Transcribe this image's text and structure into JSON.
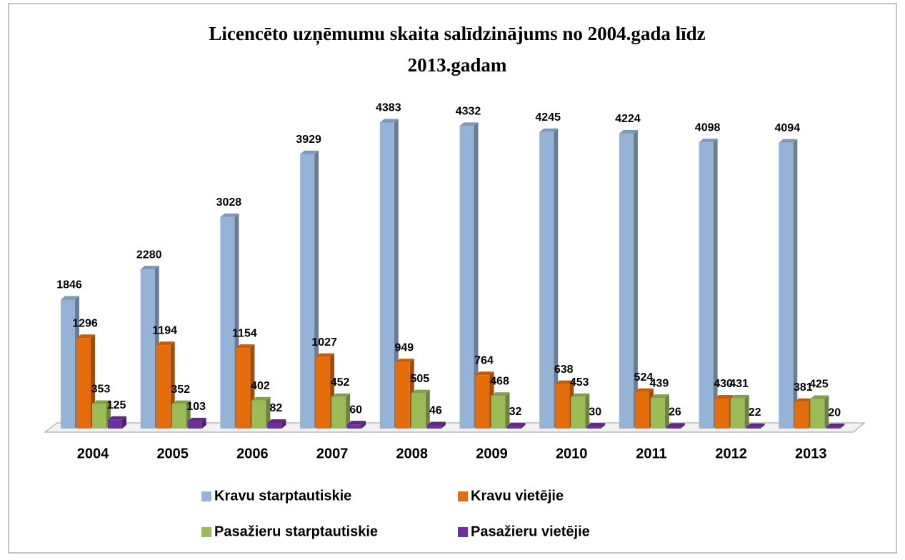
{
  "chart_data": {
    "type": "bar3d",
    "title": "Licencēto uzņēmumu skaita salīdzinājums no 2004.gada līdz 2013.gadam",
    "categories": [
      "2004",
      "2005",
      "2006",
      "2007",
      "2008",
      "2009",
      "2010",
      "2011",
      "2012",
      "2013"
    ],
    "series": [
      {
        "name": "Kravu starptautiskie",
        "color": "#95b3d7",
        "values": [
          1846,
          2280,
          3028,
          3929,
          4383,
          4332,
          4245,
          4224,
          4098,
          4094
        ]
      },
      {
        "name": "Kravu vietējie",
        "color": "#e46c0a",
        "values": [
          1296,
          1194,
          1154,
          1027,
          949,
          764,
          638,
          524,
          430,
          381
        ]
      },
      {
        "name": "Pasažieru starptautiskie",
        "color": "#9bbb59",
        "values": [
          353,
          352,
          402,
          452,
          505,
          468,
          453,
          439,
          431,
          425
        ]
      },
      {
        "name": "Pasažieru vietējie",
        "color": "#7030a0",
        "values": [
          125,
          103,
          82,
          60,
          46,
          32,
          30,
          26,
          22,
          20
        ]
      }
    ],
    "ylim": [
      0,
      4500
    ]
  }
}
